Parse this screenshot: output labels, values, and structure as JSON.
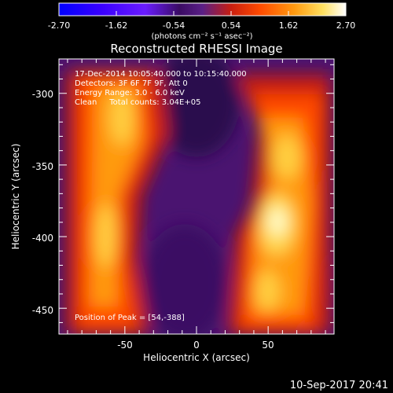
{
  "colorbar": {
    "ticks": [
      "-2.70",
      "-1.62",
      "-0.54",
      "0.54",
      "1.62",
      "2.70"
    ],
    "unit": "(photons cm⁻² s⁻¹ asec⁻²)",
    "min": -2.7,
    "max": 2.7
  },
  "title": "Reconstructed RHESSI Image",
  "info": {
    "line1": "17-Dec-2014 10:05:40.000 to 10:15:40.000",
    "line2": "Detectors: 3F 6F 7F 9F, Att 0",
    "line3": "Energy Range: 3.0 - 6.0 keV",
    "line4": "Clean     Total counts: 3.04E+05"
  },
  "peak": "Position of Peak = [54,-388]",
  "axes": {
    "xlabel": "Heliocentric X (arcsec)",
    "ylabel": "Heliocentric Y (arcsec)",
    "xticks": [
      -50,
      0,
      50
    ],
    "yticks": [
      -300,
      -350,
      -400,
      -450
    ],
    "xlim": [
      -96,
      96
    ],
    "ylim": [
      -468,
      -276
    ]
  },
  "timestamp": "10-Sep-2017 20:41",
  "colors": {
    "cmap": [
      "#0000ff",
      "#3a00ff",
      "#6a1cff",
      "#3a0b63",
      "#5a1f86",
      "#c81e10",
      "#ff4a00",
      "#ff9a10",
      "#ffe060",
      "#ffffff"
    ],
    "foreground": "#ffffff",
    "background": "#000000"
  }
}
